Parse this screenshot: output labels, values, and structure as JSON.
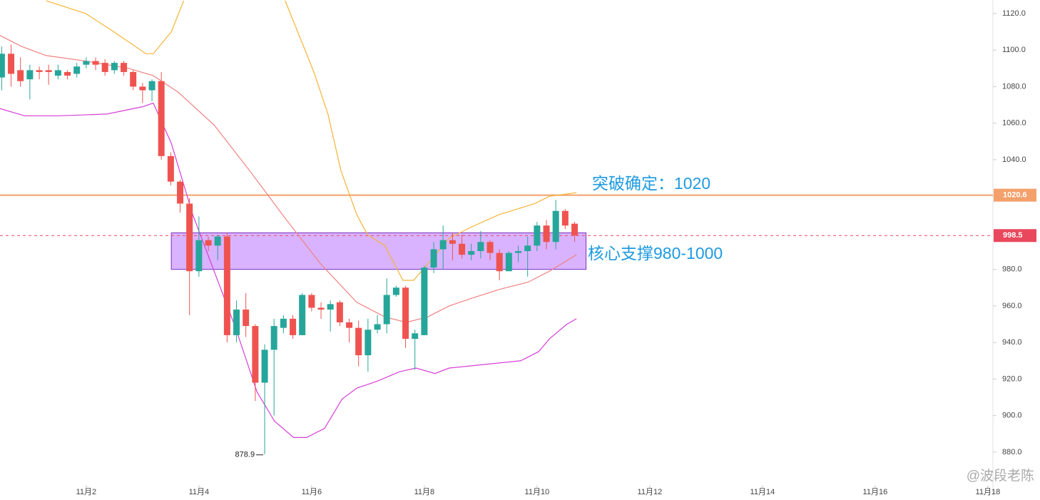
{
  "chart_data": {
    "type": "candlestick",
    "up_color": "#26a69a",
    "down_color": "#ef5350",
    "x": [
      0.5,
      0.667,
      0.833,
      1,
      1.167,
      1.333,
      1.5,
      1.667,
      1.833,
      2,
      2.167,
      2.333,
      2.5,
      2.667,
      2.833,
      3,
      3.167,
      3.333,
      3.5,
      3.667,
      3.833,
      4,
      4.167,
      4.333,
      4.5,
      4.667,
      4.833,
      5,
      5.167,
      5.333,
      5.5,
      5.667,
      5.833,
      6,
      6.167,
      6.333,
      6.5,
      6.667,
      6.833,
      7,
      7.167,
      7.333,
      7.5,
      7.667,
      7.833,
      8,
      8.167,
      8.333,
      8.5,
      8.667,
      8.833,
      9,
      9.167,
      9.333,
      9.5,
      9.667,
      9.833,
      10,
      10.167,
      10.333,
      10.5,
      10.667
    ],
    "open": [
      1085,
      1098,
      1089,
      1084,
      1089,
      1089,
      1086,
      1088,
      1087,
      1092,
      1094,
      1093,
      1089,
      1093,
      1088,
      1080,
      1078,
      1083,
      1042,
      1028,
      1016,
      979,
      996,
      993,
      998,
      944,
      958,
      949,
      918,
      936,
      948,
      953,
      944,
      966,
      959,
      958,
      962,
      951,
      948,
      933,
      947,
      950,
      966,
      970,
      942,
      944,
      981,
      991,
      996,
      994,
      988,
      990,
      995,
      989,
      979,
      989,
      990,
      993,
      1004,
      995,
      1012,
      1005
    ],
    "high": [
      1102,
      1103,
      1096,
      1092,
      1091,
      1092,
      1092,
      1089,
      1093,
      1096,
      1096,
      1095,
      1094,
      1094,
      1089,
      1082,
      1084,
      1088,
      1044,
      1029,
      1019,
      1009,
      998,
      999,
      1000,
      963,
      967,
      950,
      939,
      953,
      955,
      955,
      967,
      967,
      962,
      963,
      963,
      953,
      952,
      953,
      955,
      975,
      971,
      971,
      947,
      982,
      995,
      1004,
      1000,
      999,
      994,
      1001,
      996,
      991,
      990,
      993,
      998,
      1006,
      1007,
      1018,
      1013,
      1006
    ],
    "low": [
      1078,
      1080,
      1080,
      1073,
      1084,
      1081,
      1084,
      1084,
      1085,
      1090,
      1089,
      1086,
      1087,
      1086,
      1078,
      1071,
      1072,
      1040,
      1026,
      1011,
      955,
      976,
      990,
      985,
      940,
      940,
      943,
      908,
      878.9,
      900,
      945,
      942,
      944,
      957,
      953,
      946,
      949,
      940,
      927,
      924,
      945,
      945,
      965,
      937,
      925,
      944,
      978,
      980,
      985,
      986,
      985,
      986,
      985,
      974,
      979,
      984,
      976,
      990,
      991,
      991,
      1002,
      995
    ],
    "close": [
      1098,
      1087,
      1083,
      1089,
      1088,
      1088,
      1089,
      1086,
      1091,
      1094,
      1092,
      1088,
      1093,
      1088,
      1080,
      1078,
      1083,
      1042,
      1028,
      1016,
      979,
      996,
      993,
      998,
      944,
      958,
      949,
      918,
      936,
      949,
      953,
      944,
      966,
      959,
      958,
      961,
      951,
      948,
      933,
      947,
      950,
      966,
      970,
      942,
      945,
      981,
      991,
      996,
      994,
      988,
      990,
      995,
      989,
      979,
      989,
      990,
      993,
      1004,
      995,
      1012,
      1004,
      998.5
    ],
    "lines": [
      {
        "color": "#f5b335",
        "x": [
          1.29,
          1.99,
          2.49,
          3.06,
          3.19,
          3.51,
          3.73,
          4.9,
          5.53,
          6.04,
          6.29,
          6.52,
          6.8,
          6.99,
          7.3,
          7.62,
          7.81,
          8.06,
          8.44,
          8.82,
          9.33,
          9.96,
          10.22,
          10.47,
          10.7
        ],
        "values": [
          1127,
          1120,
          1110,
          1098,
          1098,
          1110,
          1127,
          null,
          1127,
          1088,
          1065,
          1034,
          1010,
          999,
          993,
          974,
          974,
          983,
          997,
          1003,
          1010,
          1016,
          1020,
          1021,
          1022
        ]
      },
      {
        "color": "#f08080",
        "x": [
          0.47,
          0.85,
          1.29,
          1.99,
          2.75,
          3.19,
          3.63,
          4.27,
          4.9,
          5.53,
          6.16,
          6.8,
          7.3,
          7.68,
          8.06,
          8.44,
          8.82,
          9.33,
          9.84,
          10.22,
          10.7
        ],
        "values": [
          1108,
          1102,
          1097,
          1094,
          1090,
          1086,
          1077,
          1059,
          1034,
          1008,
          983,
          962,
          954,
          951,
          954,
          960,
          964,
          969,
          973,
          979,
          988
        ]
      },
      {
        "color": "#d63fd6",
        "x": [
          0.47,
          0.91,
          1.48,
          2.37,
          3.0,
          3.19,
          3.51,
          3.89,
          4.27,
          4.65,
          5.03,
          5.34,
          5.68,
          5.91,
          6.23,
          6.54,
          6.8,
          7.18,
          7.56,
          7.85,
          8.19,
          8.44,
          9.08,
          9.71,
          10.03,
          10.22,
          10.53,
          10.7
        ],
        "values": [
          1068,
          1064,
          1064,
          1065,
          1069,
          1071,
          1049,
          1010,
          979,
          948,
          913,
          897,
          888,
          888,
          893,
          909,
          915,
          919,
          924,
          926,
          923,
          926,
          928,
          930,
          935,
          942,
          950,
          953
        ]
      }
    ],
    "hlines": [
      {
        "value": 1020.6,
        "color": "#f4a06b",
        "dashed": false
      },
      {
        "value": 998.5,
        "color": "#e8475c",
        "dashed": true
      }
    ],
    "zone": {
      "range": [
        980,
        1000
      ],
      "x": [
        3.51,
        10.87
      ],
      "color": "#d9b3ff",
      "border": "#7b2fbe"
    },
    "annotations": [
      "突破确定：1020",
      "核心支撑980-1000"
    ],
    "watermark": "@波段老陈",
    "xlim": [
      0.47,
      18.09
    ],
    "ylim": [
      862,
      1127.4
    ],
    "xticks": [
      {
        "value": 2,
        "label": "11月2"
      },
      {
        "value": 4,
        "label": "11月4"
      },
      {
        "value": 6,
        "label": "11月6"
      },
      {
        "value": 8,
        "label": "11月8"
      },
      {
        "value": 10,
        "label": "11月10"
      },
      {
        "value": 12,
        "label": "11月12"
      },
      {
        "value": 14,
        "label": "11月14"
      },
      {
        "value": 16,
        "label": "11月16"
      },
      {
        "value": 18,
        "label": "11月18"
      }
    ],
    "yticks": [
      {
        "value": 880,
        "label": "880.0"
      },
      {
        "value": 900,
        "label": "900.0"
      },
      {
        "value": 920,
        "label": "920.0"
      },
      {
        "value": 940,
        "label": "940.0"
      },
      {
        "value": 960,
        "label": "960.0"
      },
      {
        "value": 980,
        "label": "980.0"
      },
      {
        "value": 1000,
        "label": "1000.0"
      },
      {
        "value": 1020,
        "label": "1020.0"
      },
      {
        "value": 1040,
        "label": "1040.0"
      },
      {
        "value": 1060,
        "label": "1060.0"
      },
      {
        "value": 1080,
        "label": "1080.0"
      },
      {
        "value": 1100,
        "label": "1100.0"
      },
      {
        "value": 1120,
        "label": "1120.0"
      }
    ]
  }
}
